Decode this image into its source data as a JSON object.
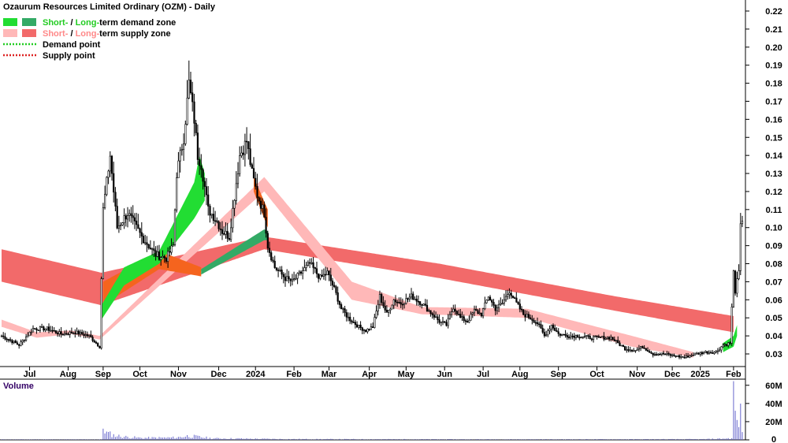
{
  "chart_data": {
    "type": "candlestick",
    "title": "Ozaurum Resources Limited Ordinary (OZM) - Daily",
    "legend": {
      "placement": "top-left",
      "items": [
        {
          "kind": "zone",
          "colors": [
            "#22dd33",
            "#33aa66"
          ],
          "parts": [
            {
              "text": "Short-",
              "color": "#22cc22"
            },
            {
              "text": " / ",
              "color": "#000000"
            },
            {
              "text": "Long-",
              "color": "#22cc22"
            },
            {
              "text": "term demand zone",
              "color": "#000000"
            }
          ]
        },
        {
          "kind": "zone",
          "colors": [
            "#ffb8b8",
            "#f26a6a"
          ],
          "parts": [
            {
              "text": "Short-",
              "color": "#ff8888"
            },
            {
              "text": " / ",
              "color": "#000000"
            },
            {
              "text": "Long-",
              "color": "#ff8888"
            },
            {
              "text": "term supply zone",
              "color": "#000000"
            }
          ]
        },
        {
          "kind": "dotted",
          "color": "#22cc22",
          "parts": [
            {
              "text": "Demand point",
              "color": "#000000"
            }
          ]
        },
        {
          "kind": "dotted",
          "color": "#dd2222",
          "parts": [
            {
              "text": "Supply point",
              "color": "#000000"
            }
          ]
        }
      ]
    },
    "x_axis": {
      "labels": [
        "Jul",
        "Aug",
        "Sep",
        "Oct",
        "Nov",
        "Dec",
        "2024",
        "Feb",
        "Mar",
        "Apr",
        "May",
        "Jun",
        "Jul",
        "Aug",
        "Sep",
        "Oct",
        "Nov",
        "Dec",
        "2025",
        "Feb"
      ],
      "label_index": [
        16,
        38,
        58,
        79,
        101,
        124,
        145,
        167,
        187,
        210,
        231,
        253,
        275,
        296,
        318,
        340,
        363,
        383,
        399,
        418
      ]
    },
    "y_axis": {
      "position": "right",
      "ylim": [
        0.02,
        0.225
      ],
      "ticks": [
        0.22,
        0.21,
        0.2,
        0.19,
        0.18,
        0.17,
        0.16,
        0.15,
        0.14,
        0.13,
        0.12,
        0.11,
        0.1,
        0.09,
        0.08,
        0.07,
        0.06,
        0.05,
        0.04,
        0.03
      ],
      "tick_labels": [
        "0.22",
        "0.21",
        "0.20",
        "0.19",
        "0.18",
        "0.17",
        "0.16",
        "0.15",
        "0.14",
        "0.13",
        "0.12",
        "0.11",
        "0.10",
        "0.09",
        "0.08",
        "0.07",
        "0.06",
        "0.05",
        "0.04",
        "0.03"
      ]
    },
    "volume_panel": {
      "label": "Volume",
      "ylim": [
        0,
        65
      ],
      "ticks": [
        60,
        40,
        20,
        0
      ],
      "tick_labels": [
        "60M",
        "40M",
        "20M",
        "0"
      ]
    },
    "n_days": 424,
    "price_anchors": [
      [
        0,
        0.04
      ],
      [
        10,
        0.035
      ],
      [
        18,
        0.044
      ],
      [
        26,
        0.044
      ],
      [
        34,
        0.041
      ],
      [
        42,
        0.042
      ],
      [
        50,
        0.04
      ],
      [
        56,
        0.034
      ],
      [
        58,
        0.11
      ],
      [
        62,
        0.14
      ],
      [
        66,
        0.1
      ],
      [
        72,
        0.108
      ],
      [
        80,
        0.095
      ],
      [
        88,
        0.085
      ],
      [
        94,
        0.083
      ],
      [
        98,
        0.09
      ],
      [
        100,
        0.13
      ],
      [
        104,
        0.15
      ],
      [
        107,
        0.18
      ],
      [
        110,
        0.16
      ],
      [
        112,
        0.14
      ],
      [
        114,
        0.135
      ],
      [
        118,
        0.11
      ],
      [
        122,
        0.105
      ],
      [
        126,
        0.098
      ],
      [
        130,
        0.095
      ],
      [
        132,
        0.11
      ],
      [
        136,
        0.14
      ],
      [
        140,
        0.148
      ],
      [
        143,
        0.13
      ],
      [
        146,
        0.118
      ],
      [
        150,
        0.108
      ],
      [
        152,
        0.09
      ],
      [
        156,
        0.078
      ],
      [
        162,
        0.072
      ],
      [
        166,
        0.07
      ],
      [
        170,
        0.074
      ],
      [
        176,
        0.08
      ],
      [
        182,
        0.072
      ],
      [
        186,
        0.075
      ],
      [
        190,
        0.066
      ],
      [
        194,
        0.055
      ],
      [
        198,
        0.05
      ],
      [
        204,
        0.045
      ],
      [
        208,
        0.043
      ],
      [
        212,
        0.045
      ],
      [
        216,
        0.062
      ],
      [
        220,
        0.052
      ],
      [
        224,
        0.06
      ],
      [
        228,
        0.058
      ],
      [
        234,
        0.062
      ],
      [
        240,
        0.058
      ],
      [
        246,
        0.052
      ],
      [
        250,
        0.048
      ],
      [
        254,
        0.046
      ],
      [
        258,
        0.056
      ],
      [
        262,
        0.05
      ],
      [
        266,
        0.048
      ],
      [
        270,
        0.054
      ],
      [
        274,
        0.052
      ],
      [
        278,
        0.062
      ],
      [
        282,
        0.055
      ],
      [
        286,
        0.058
      ],
      [
        290,
        0.065
      ],
      [
        294,
        0.058
      ],
      [
        298,
        0.052
      ],
      [
        302,
        0.05
      ],
      [
        306,
        0.047
      ],
      [
        310,
        0.04
      ],
      [
        314,
        0.046
      ],
      [
        318,
        0.041
      ],
      [
        324,
        0.04
      ],
      [
        330,
        0.04
      ],
      [
        336,
        0.039
      ],
      [
        342,
        0.039
      ],
      [
        348,
        0.039
      ],
      [
        352,
        0.036
      ],
      [
        356,
        0.033
      ],
      [
        362,
        0.032
      ],
      [
        366,
        0.034
      ],
      [
        372,
        0.03
      ],
      [
        378,
        0.03
      ],
      [
        384,
        0.029
      ],
      [
        390,
        0.028
      ],
      [
        396,
        0.03
      ],
      [
        402,
        0.031
      ],
      [
        408,
        0.031
      ],
      [
        412,
        0.035
      ],
      [
        416,
        0.036
      ],
      [
        418,
        0.075
      ],
      [
        419,
        0.065
      ],
      [
        420,
        0.07
      ],
      [
        421,
        0.075
      ],
      [
        422,
        0.1
      ],
      [
        423,
        0.105
      ]
    ],
    "long_supply_upper": [
      [
        0,
        0.088
      ],
      [
        57,
        0.075
      ],
      [
        150,
        0.095
      ],
      [
        250,
        0.08
      ],
      [
        350,
        0.062
      ],
      [
        418,
        0.051
      ]
    ],
    "long_supply_lower": [
      [
        0,
        0.07
      ],
      [
        57,
        0.057
      ],
      [
        150,
        0.088
      ],
      [
        250,
        0.072
      ],
      [
        350,
        0.054
      ],
      [
        418,
        0.042
      ]
    ],
    "short_supply_upper": [
      [
        0,
        0.049
      ],
      [
        20,
        0.042
      ],
      [
        40,
        0.043
      ],
      [
        56,
        0.04
      ],
      [
        150,
        0.128
      ],
      [
        200,
        0.07
      ],
      [
        240,
        0.056
      ],
      [
        300,
        0.055
      ],
      [
        360,
        0.04
      ],
      [
        395,
        0.031
      ]
    ],
    "short_supply_lower": [
      [
        0,
        0.045
      ],
      [
        20,
        0.039
      ],
      [
        40,
        0.041
      ],
      [
        56,
        0.038
      ],
      [
        150,
        0.12
      ],
      [
        200,
        0.06
      ],
      [
        240,
        0.052
      ],
      [
        300,
        0.05
      ],
      [
        360,
        0.034
      ],
      [
        395,
        0.028
      ]
    ],
    "long_demand_upper": [
      [
        114,
        0.077
      ],
      [
        150,
        0.099
      ],
      [
        152,
        0.098
      ]
    ],
    "long_demand_lower": [
      [
        114,
        0.074
      ],
      [
        150,
        0.093
      ],
      [
        152,
        0.093
      ]
    ],
    "short_demand_upper": [
      [
        57,
        0.057
      ],
      [
        70,
        0.078
      ],
      [
        90,
        0.087
      ],
      [
        110,
        0.125
      ],
      [
        113,
        0.14
      ],
      [
        116,
        0.13
      ]
    ],
    "short_demand_lower": [
      [
        57,
        0.049
      ],
      [
        70,
        0.068
      ],
      [
        90,
        0.08
      ],
      [
        110,
        0.105
      ],
      [
        113,
        0.11
      ],
      [
        116,
        0.115
      ]
    ],
    "volume_anchors": [
      [
        0,
        0.5
      ],
      [
        57,
        0.5
      ],
      [
        58,
        16
      ],
      [
        60,
        9
      ],
      [
        64,
        6
      ],
      [
        70,
        4
      ],
      [
        80,
        2.5
      ],
      [
        100,
        3
      ],
      [
        106,
        5
      ],
      [
        112,
        4
      ],
      [
        120,
        2
      ],
      [
        140,
        1.5
      ],
      [
        160,
        1
      ],
      [
        200,
        0.8
      ],
      [
        300,
        0.6
      ],
      [
        400,
        0.8
      ],
      [
        417,
        2
      ],
      [
        418,
        58
      ],
      [
        420,
        20
      ],
      [
        422,
        32
      ],
      [
        423,
        10
      ]
    ]
  }
}
